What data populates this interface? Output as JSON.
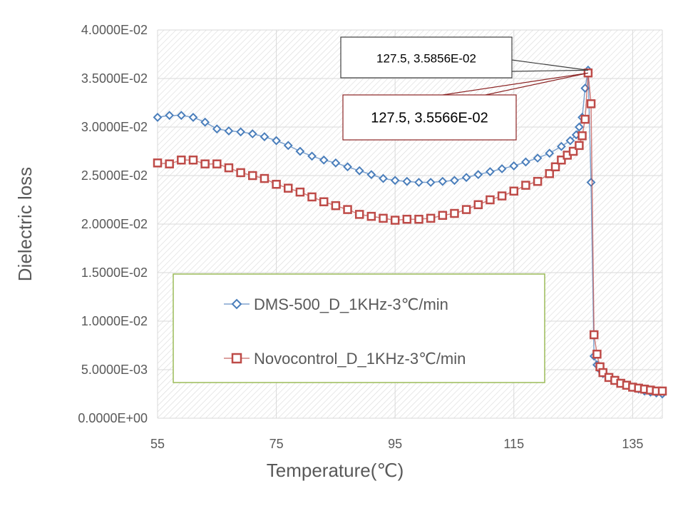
{
  "chart_data": {
    "type": "scatter",
    "xlabel": "Temperature(℃)",
    "ylabel": "Dielectric loss",
    "xlim": [
      55,
      140
    ],
    "ylim": [
      0,
      0.04
    ],
    "x_ticks": [
      "55",
      "75",
      "95",
      "115",
      "135"
    ],
    "y_ticks": [
      "0.0000E+00",
      "5.0000E-03",
      "1.0000E-02",
      "1.5000E-02",
      "2.0000E-02",
      "2.5000E-02",
      "3.0000E-02",
      "3.5000E-02",
      "4.0000E-02"
    ],
    "grid": true,
    "legend_position": "inside-left-lower",
    "series": [
      {
        "name": "DMS-500_D_1KHz-3℃/min",
        "color": "#4a7ebb",
        "marker": "diamond",
        "points": [
          [
            55,
            0.031
          ],
          [
            57,
            0.0312
          ],
          [
            59,
            0.0312
          ],
          [
            61,
            0.031
          ],
          [
            63,
            0.0305
          ],
          [
            65,
            0.0298
          ],
          [
            67,
            0.0296
          ],
          [
            69,
            0.0295
          ],
          [
            71,
            0.0293
          ],
          [
            73,
            0.029
          ],
          [
            75,
            0.0286
          ],
          [
            77,
            0.0281
          ],
          [
            79,
            0.0275
          ],
          [
            81,
            0.027
          ],
          [
            83,
            0.0266
          ],
          [
            85,
            0.0263
          ],
          [
            87,
            0.0259
          ],
          [
            89,
            0.0255
          ],
          [
            91,
            0.0251
          ],
          [
            93,
            0.0247
          ],
          [
            95,
            0.0245
          ],
          [
            97,
            0.0244
          ],
          [
            99,
            0.0243
          ],
          [
            101,
            0.0243
          ],
          [
            103,
            0.0244
          ],
          [
            105,
            0.0245
          ],
          [
            107,
            0.0248
          ],
          [
            109,
            0.0251
          ],
          [
            111,
            0.0254
          ],
          [
            113,
            0.0257
          ],
          [
            115,
            0.026
          ],
          [
            117,
            0.0264
          ],
          [
            119,
            0.0268
          ],
          [
            121,
            0.0273
          ],
          [
            123,
            0.028
          ],
          [
            124.5,
            0.0286
          ],
          [
            125.5,
            0.0292
          ],
          [
            126,
            0.03
          ],
          [
            126.5,
            0.031
          ],
          [
            127,
            0.034
          ],
          [
            127.5,
            0.03586
          ],
          [
            128,
            0.0243
          ],
          [
            128.5,
            0.0064
          ],
          [
            129,
            0.0055
          ],
          [
            129.5,
            0.005
          ],
          [
            130,
            0.0046
          ],
          [
            131,
            0.0042
          ],
          [
            132,
            0.0039
          ],
          [
            133,
            0.0036
          ],
          [
            134,
            0.0034
          ],
          [
            135,
            0.0032
          ],
          [
            136,
            0.003
          ],
          [
            137,
            0.0028
          ],
          [
            138,
            0.0027
          ],
          [
            139,
            0.0026
          ],
          [
            140,
            0.0025
          ]
        ]
      },
      {
        "name": "Novocontrol_D_1KHz-3℃/min",
        "color": "#be4b48",
        "marker": "square",
        "points": [
          [
            55,
            0.0263
          ],
          [
            57,
            0.0262
          ],
          [
            59,
            0.0266
          ],
          [
            61,
            0.0266
          ],
          [
            63,
            0.0262
          ],
          [
            65,
            0.0262
          ],
          [
            67,
            0.0258
          ],
          [
            69,
            0.0253
          ],
          [
            71,
            0.025
          ],
          [
            73,
            0.0247
          ],
          [
            75,
            0.0241
          ],
          [
            77,
            0.0237
          ],
          [
            79,
            0.0233
          ],
          [
            81,
            0.0228
          ],
          [
            83,
            0.0223
          ],
          [
            85,
            0.0219
          ],
          [
            87,
            0.0215
          ],
          [
            89,
            0.021
          ],
          [
            91,
            0.0208
          ],
          [
            93,
            0.0206
          ],
          [
            95,
            0.0204
          ],
          [
            97,
            0.0205
          ],
          [
            99,
            0.0205
          ],
          [
            101,
            0.0206
          ],
          [
            103,
            0.0209
          ],
          [
            105,
            0.0211
          ],
          [
            107,
            0.0215
          ],
          [
            109,
            0.022
          ],
          [
            111,
            0.0225
          ],
          [
            113,
            0.0229
          ],
          [
            115,
            0.0234
          ],
          [
            117,
            0.024
          ],
          [
            119,
            0.0244
          ],
          [
            121,
            0.0252
          ],
          [
            122,
            0.0259
          ],
          [
            123,
            0.0266
          ],
          [
            124,
            0.0271
          ],
          [
            125,
            0.0275
          ],
          [
            126,
            0.0281
          ],
          [
            126.5,
            0.0291
          ],
          [
            127,
            0.0308
          ],
          [
            127.5,
            0.03557
          ],
          [
            128,
            0.0324
          ],
          [
            128.5,
            0.0086
          ],
          [
            129,
            0.0066
          ],
          [
            129.5,
            0.0053
          ],
          [
            130,
            0.0047
          ],
          [
            131,
            0.0042
          ],
          [
            132,
            0.0039
          ],
          [
            133,
            0.0036
          ],
          [
            134,
            0.0034
          ],
          [
            135,
            0.0032
          ],
          [
            136,
            0.0031
          ],
          [
            137,
            0.003
          ],
          [
            138,
            0.0029
          ],
          [
            139,
            0.0028
          ],
          [
            140,
            0.0028
          ]
        ]
      }
    ],
    "annotations": [
      {
        "label": "127.5, 3.5856E-02",
        "x": 127.5,
        "y": 0.035856,
        "border_color": "#404040"
      },
      {
        "label": "127.5, 3.5566E-02",
        "x": 127.5,
        "y": 0.035566,
        "border_color": "#8b2323"
      }
    ]
  }
}
